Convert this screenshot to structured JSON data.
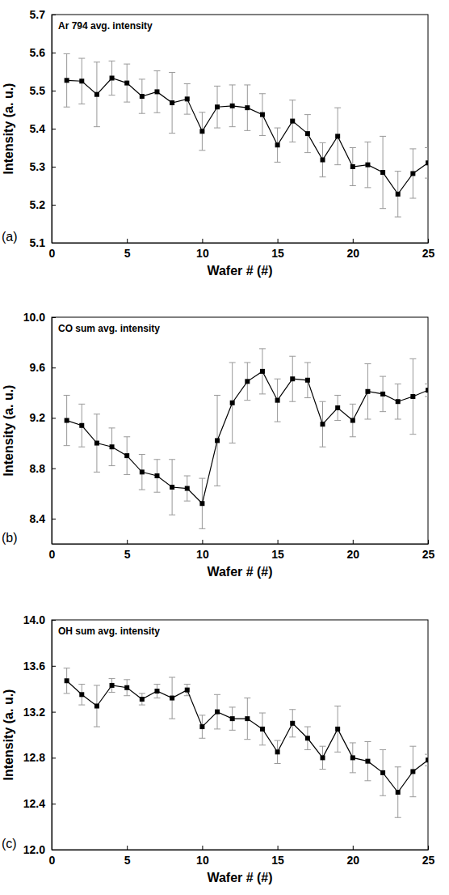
{
  "chart_data": [
    {
      "type": "line",
      "title": "Ar 794 avg. intensity",
      "annotation": "(a)",
      "xlabel": "Wafer # (#)",
      "ylabel": "Intensity (a. u.)",
      "x": [
        1,
        2,
        3,
        4,
        5,
        6,
        7,
        8,
        9,
        10,
        11,
        12,
        13,
        14,
        15,
        16,
        17,
        18,
        19,
        20,
        21,
        22,
        23,
        24,
        25
      ],
      "values": [
        5.527,
        5.525,
        5.49,
        5.533,
        5.52,
        5.485,
        5.497,
        5.468,
        5.478,
        5.393,
        5.457,
        5.46,
        5.455,
        5.437,
        5.357,
        5.42,
        5.387,
        5.318,
        5.38,
        5.3,
        5.305,
        5.285,
        5.228,
        5.282,
        5.31
      ],
      "errors": [
        0.07,
        0.06,
        0.085,
        0.045,
        0.05,
        0.045,
        0.055,
        0.08,
        0.04,
        0.05,
        0.055,
        0.055,
        0.06,
        0.055,
        0.045,
        0.055,
        0.05,
        0.045,
        0.075,
        0.05,
        0.06,
        0.095,
        0.06,
        0.065,
        0.04
      ],
      "color": "#000000",
      "marker": "square",
      "xlim": [
        0,
        25
      ],
      "xticks": [
        0,
        5,
        10,
        15,
        20,
        25
      ],
      "ylim": [
        5.1,
        5.7
      ],
      "yticks": [
        5.1,
        5.2,
        5.3,
        5.4,
        5.5,
        5.6,
        5.7
      ]
    },
    {
      "type": "line",
      "title": "CO sum avg. intensity",
      "annotation": "(b)",
      "xlabel": "Wafer # (#)",
      "ylabel": "Intensity (a. u.)",
      "x": [
        1,
        2,
        3,
        4,
        5,
        6,
        7,
        8,
        9,
        10,
        11,
        12,
        13,
        14,
        15,
        16,
        17,
        18,
        19,
        20,
        21,
        22,
        23,
        24,
        25
      ],
      "values": [
        9.18,
        9.14,
        9.0,
        8.97,
        8.9,
        8.77,
        8.74,
        8.65,
        8.64,
        8.52,
        9.02,
        9.32,
        9.49,
        9.57,
        9.34,
        9.51,
        9.5,
        9.15,
        9.28,
        9.18,
        9.41,
        9.39,
        9.33,
        9.37,
        9.42
      ],
      "errors": [
        0.2,
        0.17,
        0.23,
        0.15,
        0.15,
        0.14,
        0.13,
        0.22,
        0.1,
        0.2,
        0.36,
        0.32,
        0.15,
        0.18,
        0.17,
        0.18,
        0.14,
        0.18,
        0.1,
        0.13,
        0.22,
        0.14,
        0.14,
        0.3,
        0.05
      ],
      "color": "#000000",
      "marker": "square",
      "xlim": [
        0,
        25
      ],
      "xticks": [
        0,
        5,
        10,
        15,
        20,
        25
      ],
      "ylim": [
        8.2,
        10.0
      ],
      "yticks": [
        8.4,
        8.8,
        9.2,
        9.6,
        {
          "value": 10,
          "label": "10.0"
        }
      ]
    },
    {
      "type": "line",
      "title": "OH sum avg. intensity",
      "annotation": "(c)",
      "xlabel": "Wafer # (#)",
      "ylabel": "Intensity (a. u.)",
      "x": [
        1,
        2,
        3,
        4,
        5,
        6,
        7,
        8,
        9,
        10,
        11,
        12,
        13,
        14,
        15,
        16,
        17,
        18,
        19,
        20,
        21,
        22,
        23,
        24,
        25
      ],
      "values": [
        13.47,
        13.35,
        13.25,
        13.43,
        13.41,
        13.31,
        13.38,
        13.32,
        13.39,
        13.07,
        13.2,
        13.14,
        13.14,
        13.05,
        12.85,
        13.1,
        12.97,
        12.8,
        13.05,
        12.8,
        12.77,
        12.67,
        12.5,
        12.68,
        12.78
      ],
      "errors": [
        0.11,
        0.09,
        0.18,
        0.06,
        0.07,
        0.05,
        0.06,
        0.18,
        0.05,
        0.1,
        0.15,
        0.1,
        0.18,
        0.14,
        0.1,
        0.12,
        0.1,
        0.1,
        0.2,
        0.13,
        0.17,
        0.2,
        0.22,
        0.22,
        0.05
      ],
      "color": "#000000",
      "marker": "square",
      "xlim": [
        0,
        25
      ],
      "xticks": [
        0,
        5,
        10,
        15,
        20,
        25
      ],
      "ylim": [
        12,
        14
      ],
      "yticks": [
        {
          "value": 12,
          "label": "12.0"
        },
        12.4,
        12.8,
        13.2,
        13.6,
        {
          "value": 14,
          "label": "14.0"
        }
      ]
    }
  ]
}
